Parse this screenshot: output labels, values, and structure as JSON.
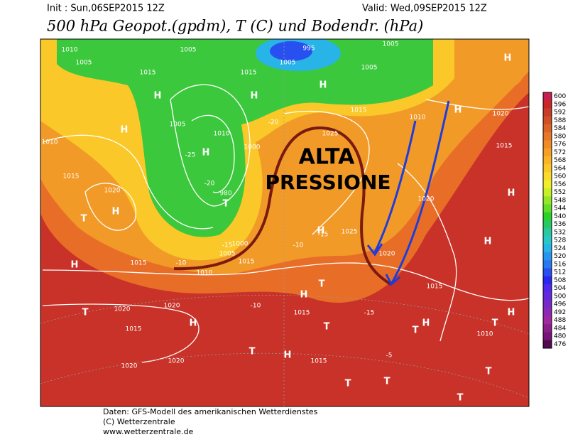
{
  "header": {
    "init": "Init : Sun,06SEP2015 12Z",
    "valid": "Valid: Wed,09SEP2015 12Z",
    "title": "500 hPa Geopot.(gpdm), T (C) und Bodendr. (hPa)"
  },
  "annotation": [
    "ALTA",
    "PRESSIONE"
  ],
  "colorbar": {
    "levels": [
      600,
      596,
      592,
      588,
      584,
      580,
      576,
      572,
      568,
      564,
      560,
      556,
      552,
      548,
      544,
      540,
      536,
      532,
      528,
      524,
      520,
      516,
      512,
      508,
      504,
      500,
      496,
      492,
      488,
      484,
      480,
      476
    ],
    "colors": [
      "#c81e50",
      "#c82828",
      "#c83c28",
      "#d25028",
      "#dc6428",
      "#e67828",
      "#f08c28",
      "#f5a028",
      "#fab428",
      "#fac828",
      "#fadc28",
      "#f0f028",
      "#c8f028",
      "#96e628",
      "#64dc28",
      "#28d228",
      "#28c864",
      "#28c8a0",
      "#28c8c8",
      "#28b4e6",
      "#2896f0",
      "#2878f0",
      "#2850f0",
      "#2828f0",
      "#5028f0",
      "#6428dc",
      "#7828c8",
      "#8c28b4",
      "#a028a0",
      "#8c1e8c",
      "#781478",
      "#500a50"
    ]
  },
  "map_labels": [
    "1010",
    "1005",
    "1015",
    "1005",
    "1015",
    "1005",
    "995",
    "1005",
    "1005",
    "1010",
    "1015",
    "1025",
    "1020",
    "1015",
    "1010",
    "1015",
    "1020",
    "1005",
    "1010",
    "1000",
    "980",
    "1000",
    "1005",
    "1010",
    "1015",
    "1015",
    "1025",
    "1020",
    "1015",
    "1020",
    "1020",
    "1015",
    "1015",
    "1020",
    "1020",
    "1015",
    "1010",
    "1020",
    "H",
    "H",
    "H",
    "H",
    "H",
    "H",
    "H",
    "H",
    "H",
    "H",
    "H",
    "H",
    "H",
    "H",
    "H",
    "H",
    "H",
    "T",
    "T",
    "T",
    "T",
    "T",
    "T",
    "T",
    "T",
    "T",
    "T",
    "T",
    "T",
    "-10",
    "-15",
    "-20",
    "-25",
    "-20",
    "-10",
    "-15",
    "-15",
    "-10",
    "-5"
  ],
  "footer": [
    "Daten: GFS-Modell des amerikanischen Wetterdienstes",
    "(C) Wetterzentrale",
    "www.wetterzentrale.de"
  ]
}
